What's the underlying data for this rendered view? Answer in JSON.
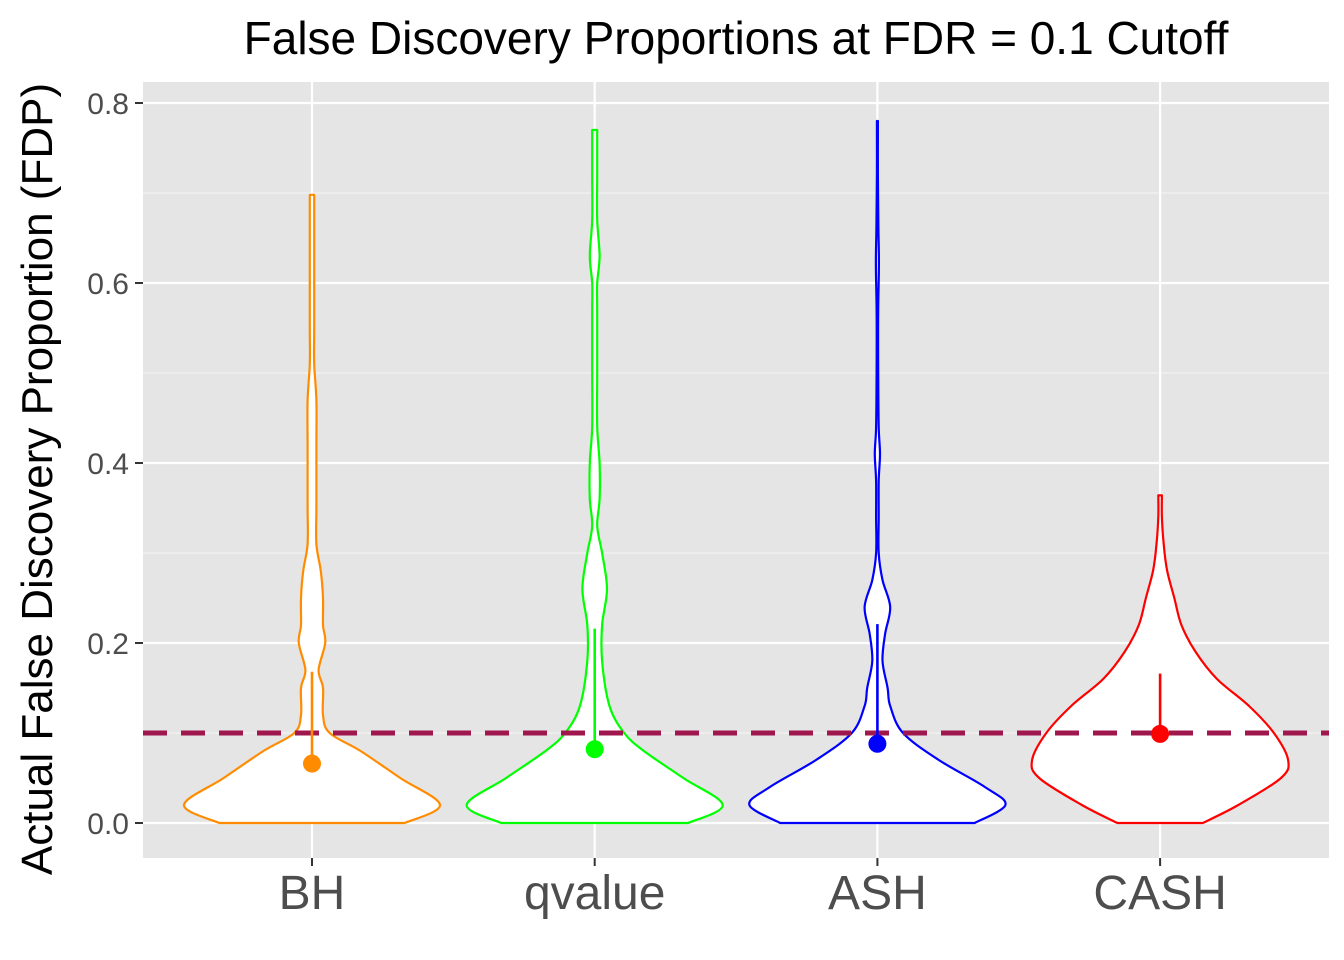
{
  "chart_data": {
    "type": "violin",
    "title": "False Discovery Proportions at FDR = 0.1 Cutoff",
    "xlabel": "",
    "ylabel": "Actual False Discovery Proportion (FDP)",
    "ylim": [
      0,
      0.8
    ],
    "yticks": [
      "0.0",
      "0.2",
      "0.4",
      "0.6",
      "0.8"
    ],
    "grid": true,
    "legend": "none",
    "reference_line": {
      "y": 0.1,
      "style": "dashed",
      "color": "#A0174E"
    },
    "categories": [
      "BH",
      "qvalue",
      "ASH",
      "CASH"
    ],
    "series": [
      {
        "category": "BH",
        "color": "#FF8C00",
        "min": 0.0,
        "max": 0.698,
        "mean": 0.066,
        "sd_upper": 0.168,
        "density": [
          [
            0.0,
            0.42
          ],
          [
            0.02,
            0.58
          ],
          [
            0.05,
            0.4
          ],
          [
            0.08,
            0.22
          ],
          [
            0.1,
            0.08
          ],
          [
            0.12,
            0.05
          ],
          [
            0.15,
            0.05
          ],
          [
            0.17,
            0.03
          ],
          [
            0.2,
            0.06
          ],
          [
            0.22,
            0.05
          ],
          [
            0.25,
            0.05
          ],
          [
            0.28,
            0.04
          ],
          [
            0.31,
            0.02
          ],
          [
            0.35,
            0.02
          ],
          [
            0.38,
            0.02
          ],
          [
            0.42,
            0.02
          ],
          [
            0.47,
            0.02
          ],
          [
            0.51,
            0.01
          ],
          [
            0.55,
            0.01
          ],
          [
            0.62,
            0.01
          ],
          [
            0.68,
            0.01
          ],
          [
            0.698,
            0.01
          ]
        ]
      },
      {
        "category": "qvalue",
        "color": "#00FF00",
        "min": 0.0,
        "max": 0.77,
        "mean": 0.082,
        "sd_upper": 0.216,
        "density": [
          [
            0.0,
            0.38
          ],
          [
            0.02,
            0.52
          ],
          [
            0.05,
            0.36
          ],
          [
            0.08,
            0.2
          ],
          [
            0.1,
            0.12
          ],
          [
            0.13,
            0.06
          ],
          [
            0.18,
            0.03
          ],
          [
            0.22,
            0.03
          ],
          [
            0.26,
            0.05
          ],
          [
            0.3,
            0.03
          ],
          [
            0.33,
            0.01
          ],
          [
            0.36,
            0.02
          ],
          [
            0.4,
            0.02
          ],
          [
            0.44,
            0.01
          ],
          [
            0.5,
            0.01
          ],
          [
            0.57,
            0.01
          ],
          [
            0.6,
            0.01
          ],
          [
            0.63,
            0.02
          ],
          [
            0.67,
            0.01
          ],
          [
            0.72,
            0.01
          ],
          [
            0.77,
            0.01
          ]
        ]
      },
      {
        "category": "ASH",
        "color": "#0000FF",
        "min": 0.0,
        "max": 0.782,
        "mean": 0.088,
        "sd_upper": 0.221,
        "density": [
          [
            0.0,
            0.38
          ],
          [
            0.02,
            0.5
          ],
          [
            0.04,
            0.42
          ],
          [
            0.07,
            0.24
          ],
          [
            0.1,
            0.1
          ],
          [
            0.13,
            0.05
          ],
          [
            0.15,
            0.04
          ],
          [
            0.18,
            0.02
          ],
          [
            0.21,
            0.03
          ],
          [
            0.24,
            0.05
          ],
          [
            0.27,
            0.02
          ],
          [
            0.3,
            0.005
          ],
          [
            0.34,
            0.005
          ],
          [
            0.38,
            0.005
          ],
          [
            0.41,
            0.01
          ],
          [
            0.44,
            0.005
          ],
          [
            0.5,
            0.003
          ],
          [
            0.57,
            0.003
          ],
          [
            0.62,
            0.006
          ],
          [
            0.66,
            0.004
          ],
          [
            0.72,
            0.002
          ],
          [
            0.78,
            0.002
          ]
        ]
      },
      {
        "category": "CASH",
        "color": "#FF0000",
        "min": 0.0,
        "max": 0.364,
        "mean": 0.099,
        "sd_upper": 0.166,
        "density": [
          [
            0.0,
            0.12
          ],
          [
            0.02,
            0.22
          ],
          [
            0.05,
            0.34
          ],
          [
            0.07,
            0.36
          ],
          [
            0.1,
            0.32
          ],
          [
            0.13,
            0.25
          ],
          [
            0.16,
            0.16
          ],
          [
            0.19,
            0.1
          ],
          [
            0.22,
            0.06
          ],
          [
            0.25,
            0.04
          ],
          [
            0.28,
            0.02
          ],
          [
            0.31,
            0.01
          ],
          [
            0.34,
            0.005
          ],
          [
            0.364,
            0.005
          ]
        ]
      }
    ]
  }
}
